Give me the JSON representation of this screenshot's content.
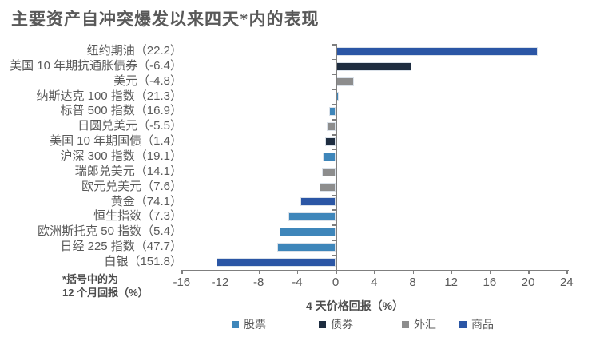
{
  "chart_data": {
    "type": "bar",
    "orientation": "horizontal",
    "title": "主要资产自冲突爆发以来四天*内的表现",
    "xlabel": "4 天价格回报（%）",
    "xlim": [
      -16,
      24
    ],
    "x_ticks": [
      -16,
      -12,
      -8,
      -4,
      0,
      4,
      8,
      12,
      16,
      20,
      24
    ],
    "grid": false,
    "legend_position": "bottom",
    "legend": [
      {
        "key": "stocks",
        "label": "股票",
        "color": "#3e86ba"
      },
      {
        "key": "bonds",
        "label": "债券",
        "color": "#1e2d40"
      },
      {
        "key": "fx",
        "label": "外汇",
        "color": "#8d8d8d"
      },
      {
        "key": "commodities",
        "label": "商品",
        "color": "#2b56a5"
      }
    ],
    "bars": [
      {
        "label": "纽约期油（22.2）",
        "value": 21.0,
        "category": "commodities",
        "twelve_month_return": 22.2
      },
      {
        "label": "美国 10 年期抗通胀债券（-6.4）",
        "value": 7.9,
        "category": "bonds",
        "twelve_month_return": -6.4
      },
      {
        "label": "美元（-4.8）",
        "value": 1.9,
        "category": "fx",
        "twelve_month_return": -4.8
      },
      {
        "label": "纳斯达克 100 指数（21.3）",
        "value": 0.3,
        "category": "stocks",
        "twelve_month_return": 21.3
      },
      {
        "label": "标普 500 指数（16.9）",
        "value": -0.7,
        "category": "stocks",
        "twelve_month_return": 16.9
      },
      {
        "label": "日圆兑美元（-5.5）",
        "value": -0.9,
        "category": "fx",
        "twelve_month_return": -5.5
      },
      {
        "label": "美国 10 年期国债（1.4）",
        "value": -1.1,
        "category": "bonds",
        "twelve_month_return": 1.4
      },
      {
        "label": "沪深 300 指数（19.1）",
        "value": -1.3,
        "category": "stocks",
        "twelve_month_return": 19.1
      },
      {
        "label": "瑞郎兑美元（14.1）",
        "value": -1.4,
        "category": "fx",
        "twelve_month_return": 14.1
      },
      {
        "label": "欧元兑美元（7.6）",
        "value": -1.7,
        "category": "fx",
        "twelve_month_return": 7.6
      },
      {
        "label": "黄金（74.1）",
        "value": -3.7,
        "category": "commodities",
        "twelve_month_return": 74.1
      },
      {
        "label": "恒生指数（7.3）",
        "value": -4.9,
        "category": "stocks",
        "twelve_month_return": 7.3
      },
      {
        "label": "欧洲斯托克 50 指数（5.4）",
        "value": -5.8,
        "category": "stocks",
        "twelve_month_return": 5.4
      },
      {
        "label": "日经 225 指数（47.7）",
        "value": -6.1,
        "category": "stocks",
        "twelve_month_return": 47.7
      },
      {
        "label": "白银（151.8）",
        "value": -12.4,
        "category": "commodities",
        "twelve_month_return": 151.8
      }
    ],
    "footnote": {
      "line1": "*括号中的为",
      "line2": "12 个月回报（%）"
    }
  }
}
